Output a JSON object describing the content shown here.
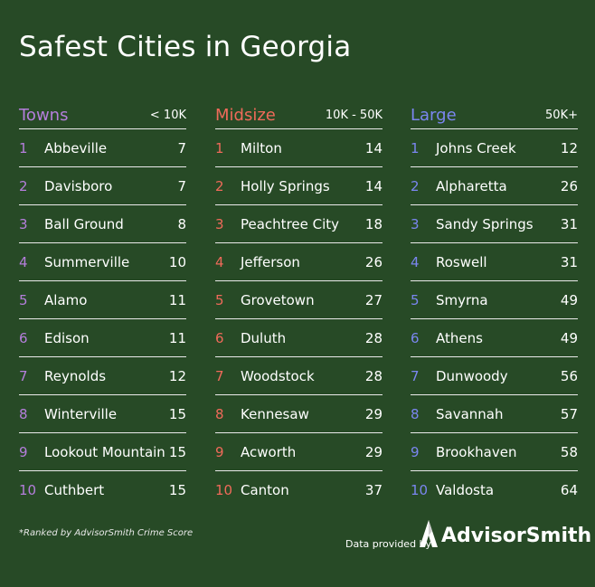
{
  "title": "Safest Cities in Georgia",
  "colors": {
    "background": "#274a26",
    "towns_accent": "#b57edc",
    "midsize_accent": "#f06a5a",
    "large_accent": "#7b86f0"
  },
  "columns": [
    {
      "name": "Towns",
      "range": "< 10K",
      "rows": [
        {
          "rank": "1",
          "city": "Abbeville",
          "score": "7"
        },
        {
          "rank": "2",
          "city": "Davisboro",
          "score": "7"
        },
        {
          "rank": "3",
          "city": "Ball Ground",
          "score": "8"
        },
        {
          "rank": "4",
          "city": "Summerville",
          "score": "10"
        },
        {
          "rank": "5",
          "city": "Alamo",
          "score": "11"
        },
        {
          "rank": "6",
          "city": "Edison",
          "score": "11"
        },
        {
          "rank": "7",
          "city": "Reynolds",
          "score": "12"
        },
        {
          "rank": "8",
          "city": "Winterville",
          "score": "15"
        },
        {
          "rank": "9",
          "city": "Lookout Mountain",
          "score": "15"
        },
        {
          "rank": "10",
          "city": "Cuthbert",
          "score": "15"
        }
      ]
    },
    {
      "name": "Midsize",
      "range": "10K - 50K",
      "rows": [
        {
          "rank": "1",
          "city": "Milton",
          "score": "14"
        },
        {
          "rank": "2",
          "city": "Holly Springs",
          "score": "14"
        },
        {
          "rank": "3",
          "city": "Peachtree City",
          "score": "18"
        },
        {
          "rank": "4",
          "city": "Jefferson",
          "score": "26"
        },
        {
          "rank": "5",
          "city": "Grovetown",
          "score": "27"
        },
        {
          "rank": "6",
          "city": "Duluth",
          "score": "28"
        },
        {
          "rank": "7",
          "city": "Woodstock",
          "score": "28"
        },
        {
          "rank": "8",
          "city": "Kennesaw",
          "score": "29"
        },
        {
          "rank": "9",
          "city": "Acworth",
          "score": "29"
        },
        {
          "rank": "10",
          "city": "Canton",
          "score": "37"
        }
      ]
    },
    {
      "name": "Large",
      "range": "50K+",
      "rows": [
        {
          "rank": "1",
          "city": "Johns Creek",
          "score": "12"
        },
        {
          "rank": "2",
          "city": "Alpharetta",
          "score": "26"
        },
        {
          "rank": "3",
          "city": "Sandy Springs",
          "score": "31"
        },
        {
          "rank": "4",
          "city": "Roswell",
          "score": "31"
        },
        {
          "rank": "5",
          "city": "Smyrna",
          "score": "49"
        },
        {
          "rank": "6",
          "city": "Athens",
          "score": "49"
        },
        {
          "rank": "7",
          "city": "Dunwoody",
          "score": "56"
        },
        {
          "rank": "8",
          "city": "Savannah",
          "score": "57"
        },
        {
          "rank": "9",
          "city": "Brookhaven",
          "score": "58"
        },
        {
          "rank": "10",
          "city": "Valdosta",
          "score": "64"
        }
      ]
    }
  ],
  "footnote": "*Ranked by AdvisorSmith Crime Score",
  "credit": "Data provided by",
  "brand": {
    "name": "AdvisorSmith",
    "icon": "advisorsmith-logo-icon"
  }
}
